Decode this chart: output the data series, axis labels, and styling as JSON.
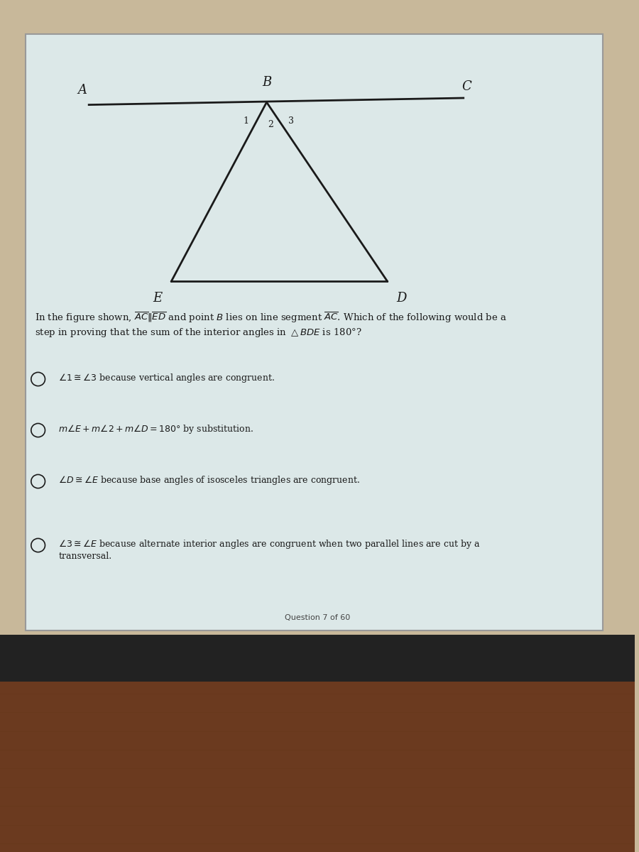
{
  "bg_color": "#c8b89a",
  "screen_bg": "#dce8e8",
  "diagram": {
    "line_color": "#1a1a1a",
    "line_width": 2.0
  },
  "question_text": "In the figure shown, $\\overline{AC} \\| \\overline{ED}$ and point $B$ lies on line segment $\\overline{AC}$. Which of the following would be a\nstep in proving that the sum of the interior angles in $\\triangle BDE$ is 180°?",
  "options": [
    "$\\angle 1 \\cong \\angle 3$ because vertical angles are congruent.",
    "$m\\angle E + m\\angle 2 + m\\angle D = 180°$ by substitution.",
    "$\\angle D \\cong \\angle E$ because base angles of isosceles triangles are congruent.",
    "$\\angle 3 \\cong \\angle E$ because alternate interior angles are congruent when two parallel lines are cut by a\ntransversal."
  ],
  "footer_text": "Question 7 of 60",
  "text_color": "#1a1a1a",
  "option_circle_color": "#1a1a1a",
  "desk_color": "#6b3a1f",
  "taskbar_color": "#222222"
}
